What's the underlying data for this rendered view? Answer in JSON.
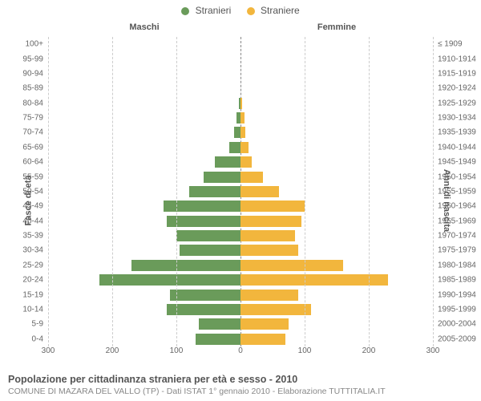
{
  "chart": {
    "type": "population-pyramid",
    "legend": [
      {
        "label": "Stranieri",
        "color": "#6a9b5a"
      },
      {
        "label": "Straniere",
        "color": "#f2b63d"
      }
    ],
    "side_titles": {
      "left": "Maschi",
      "right": "Femmine"
    },
    "yaxis_label_left": "Fasce di età",
    "yaxis_label_right": "Anni di nascita",
    "background_color": "#ffffff",
    "grid_color": "#cccccc",
    "center_line_color": "#888888",
    "label_fontsize": 10,
    "title_fontsize": 11,
    "xlim": 300,
    "xtick_step": 100,
    "xticks": [
      300,
      200,
      100,
      0,
      100,
      200,
      300
    ],
    "xtick_positions_pct": [
      0,
      16.67,
      33.33,
      50,
      66.67,
      83.33,
      100
    ],
    "bar_height_ratio": 0.76,
    "rows": [
      {
        "age": "100+",
        "birth": "≤ 1909",
        "m": 0,
        "f": 0
      },
      {
        "age": "95-99",
        "birth": "1910-1914",
        "m": 0,
        "f": 0
      },
      {
        "age": "90-94",
        "birth": "1915-1919",
        "m": 0,
        "f": 0
      },
      {
        "age": "85-89",
        "birth": "1920-1924",
        "m": 0,
        "f": 0
      },
      {
        "age": "80-84",
        "birth": "1925-1929",
        "m": 2,
        "f": 2
      },
      {
        "age": "75-79",
        "birth": "1930-1934",
        "m": 6,
        "f": 6
      },
      {
        "age": "70-74",
        "birth": "1935-1939",
        "m": 10,
        "f": 8
      },
      {
        "age": "65-69",
        "birth": "1940-1944",
        "m": 18,
        "f": 12
      },
      {
        "age": "60-64",
        "birth": "1945-1949",
        "m": 40,
        "f": 18
      },
      {
        "age": "55-59",
        "birth": "1950-1954",
        "m": 58,
        "f": 35
      },
      {
        "age": "50-54",
        "birth": "1955-1959",
        "m": 80,
        "f": 60
      },
      {
        "age": "45-49",
        "birth": "1960-1964",
        "m": 120,
        "f": 100
      },
      {
        "age": "40-44",
        "birth": "1965-1969",
        "m": 115,
        "f": 95
      },
      {
        "age": "35-39",
        "birth": "1970-1974",
        "m": 100,
        "f": 85
      },
      {
        "age": "30-34",
        "birth": "1975-1979",
        "m": 95,
        "f": 90
      },
      {
        "age": "25-29",
        "birth": "1980-1984",
        "m": 170,
        "f": 160
      },
      {
        "age": "20-24",
        "birth": "1985-1989",
        "m": 220,
        "f": 230
      },
      {
        "age": "15-19",
        "birth": "1990-1994",
        "m": 110,
        "f": 90
      },
      {
        "age": "10-14",
        "birth": "1995-1999",
        "m": 115,
        "f": 110
      },
      {
        "age": "5-9",
        "birth": "2000-2004",
        "m": 65,
        "f": 75
      },
      {
        "age": "0-4",
        "birth": "2005-2009",
        "m": 70,
        "f": 70
      }
    ]
  },
  "footer": {
    "title": "Popolazione per cittadinanza straniera per età e sesso - 2010",
    "subtitle": "COMUNE DI MAZARA DEL VALLO (TP) - Dati ISTAT 1° gennaio 2010 - Elaborazione TUTTITALIA.IT"
  }
}
